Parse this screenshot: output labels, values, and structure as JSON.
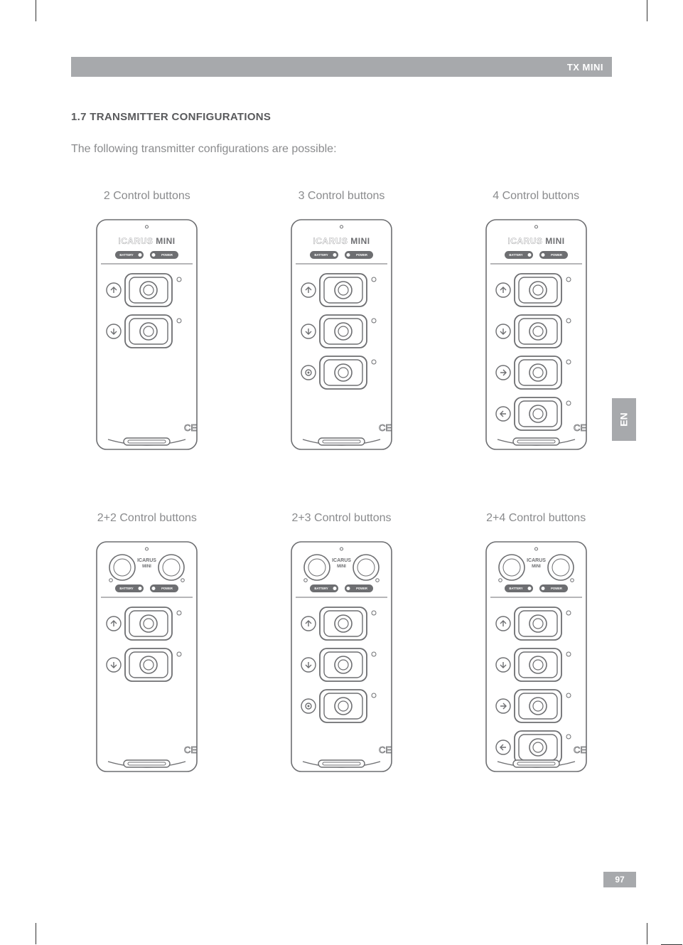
{
  "header": {
    "product": "TX MINI"
  },
  "section": {
    "number": "1.7",
    "title": "TRANSMITTER CONFIGURATIONS",
    "intro": "The following transmitter configurations are possible:"
  },
  "side_tab": "EN",
  "page_number": "97",
  "device_label": {
    "brand": "ICARUS",
    "model": "MINI",
    "led1": "BATTERY",
    "led2": "POWER"
  },
  "configs": [
    {
      "label": "2 Control buttons",
      "top_buttons": 0,
      "main_buttons": 2,
      "icons": [
        "up",
        "down"
      ]
    },
    {
      "label": "3 Control buttons",
      "top_buttons": 0,
      "main_buttons": 3,
      "icons": [
        "up",
        "down",
        "target"
      ]
    },
    {
      "label": "4 Control buttons",
      "top_buttons": 0,
      "main_buttons": 4,
      "icons": [
        "up",
        "down",
        "right",
        "left"
      ]
    },
    {
      "label": "2+2 Control buttons",
      "top_buttons": 2,
      "main_buttons": 2,
      "icons": [
        "up",
        "down"
      ]
    },
    {
      "label": "2+3 Control buttons",
      "top_buttons": 2,
      "main_buttons": 3,
      "icons": [
        "up",
        "down",
        "target"
      ]
    },
    {
      "label": "2+4 Control buttons",
      "top_buttons": 2,
      "main_buttons": 4,
      "icons": [
        "up",
        "down",
        "right",
        "left"
      ]
    }
  ],
  "colors": {
    "stroke": "#6d6e71",
    "fill": "#ffffff",
    "gray": "#a7a9ac",
    "text": "#8a8b8d"
  }
}
